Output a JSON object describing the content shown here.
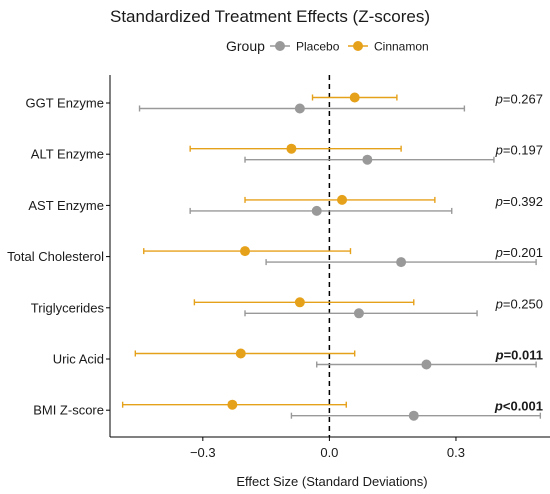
{
  "chart_data": {
    "type": "forest",
    "title": "Standardized Treatment Effects (Z-scores)",
    "xlabel": "Effect Size (Standard Deviations)",
    "ylabel": "",
    "xlim": [
      -0.52,
      0.53
    ],
    "xticks": [
      -0.3,
      0.0,
      0.3
    ],
    "xtick_labels": [
      "−0.3",
      "0.0",
      "0.3"
    ],
    "reference_line": 0.0,
    "legend": {
      "title": "Group",
      "placement": "top-center",
      "entries": [
        {
          "name": "Placebo",
          "color": "#999999"
        },
        {
          "name": "Cinnamon",
          "color": "#E6A11A"
        }
      ]
    },
    "categories": [
      "GGT Enzyme",
      "ALT Enzyme",
      "AST Enzyme",
      "Total Cholesterol",
      "Triglycerides",
      "Uric Acid",
      "BMI Z-score"
    ],
    "series": [
      {
        "name": "Cinnamon",
        "estimate": [
          0.06,
          -0.09,
          0.03,
          -0.2,
          -0.07,
          -0.21,
          -0.23
        ],
        "ci_low": [
          -0.04,
          -0.33,
          -0.2,
          -0.44,
          -0.32,
          -0.46,
          -0.49
        ],
        "ci_high": [
          0.16,
          0.17,
          0.25,
          0.05,
          0.2,
          0.06,
          0.04
        ]
      },
      {
        "name": "Placebo",
        "estimate": [
          -0.07,
          0.09,
          -0.03,
          0.17,
          0.07,
          0.23,
          0.2
        ],
        "ci_low": [
          -0.45,
          -0.2,
          -0.33,
          -0.15,
          -0.2,
          -0.03,
          -0.09
        ],
        "ci_high": [
          0.32,
          0.39,
          0.29,
          0.49,
          0.35,
          0.49,
          0.5
        ]
      }
    ],
    "p_values": [
      {
        "prefix": "p",
        "text": "=0.267",
        "bold": false
      },
      {
        "prefix": "p",
        "text": "=0.197",
        "bold": false
      },
      {
        "prefix": "p",
        "text": "=0.392",
        "bold": false
      },
      {
        "prefix": "p",
        "text": "=0.201",
        "bold": false
      },
      {
        "prefix": "p",
        "text": "=0.250",
        "bold": false
      },
      {
        "prefix": "p",
        "text": "=0.011",
        "bold": true
      },
      {
        "prefix": "p",
        "text": "<0.001",
        "bold": true
      }
    ]
  }
}
